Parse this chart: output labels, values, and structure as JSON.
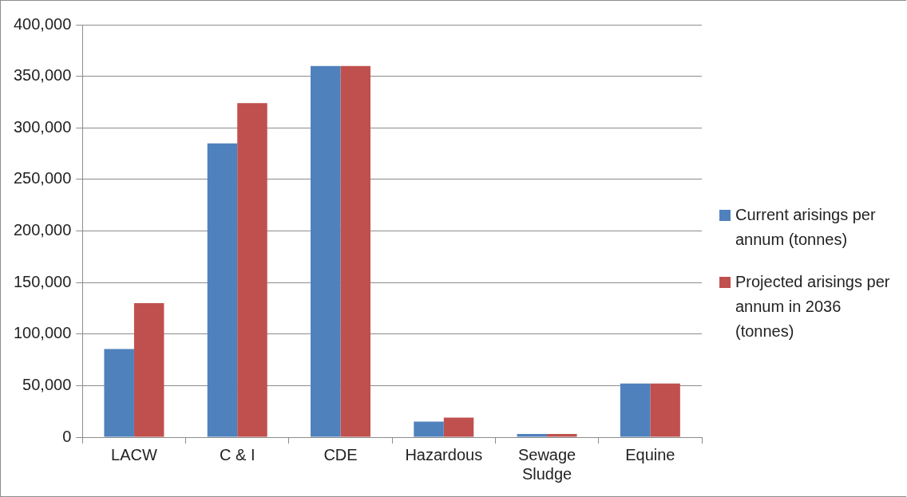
{
  "chart_data": {
    "type": "bar",
    "categories": [
      "LACW",
      "C & I",
      "CDE",
      "Hazardous",
      "Sewage Sludge",
      "Equine"
    ],
    "series": [
      {
        "name": "Current arisings per annum (tonnes)",
        "color": "#4f81bd",
        "values": [
          85500,
          285000,
          360000,
          15000,
          3000,
          52000
        ]
      },
      {
        "name": "Projected arisings per annum in 2036 (tonnes)",
        "color": "#c0504d",
        "values": [
          130000,
          324000,
          360000,
          19000,
          3000,
          52000
        ]
      }
    ],
    "ylim": [
      0,
      400000
    ],
    "yticks": [
      0,
      {
        "value": 50000,
        "label": "50,000"
      },
      {
        "value": 100000,
        "label": "100,000"
      },
      {
        "value": 150000,
        "label": "150,000"
      },
      {
        "value": 200000,
        "label": "200,000"
      },
      {
        "value": 250000,
        "label": "250,000"
      },
      {
        "value": 300000,
        "label": "300,000"
      },
      {
        "value": 350000,
        "label": "350,000"
      },
      {
        "value": 400000,
        "label": "400,000"
      }
    ],
    "grid": "y",
    "legend": "right"
  }
}
